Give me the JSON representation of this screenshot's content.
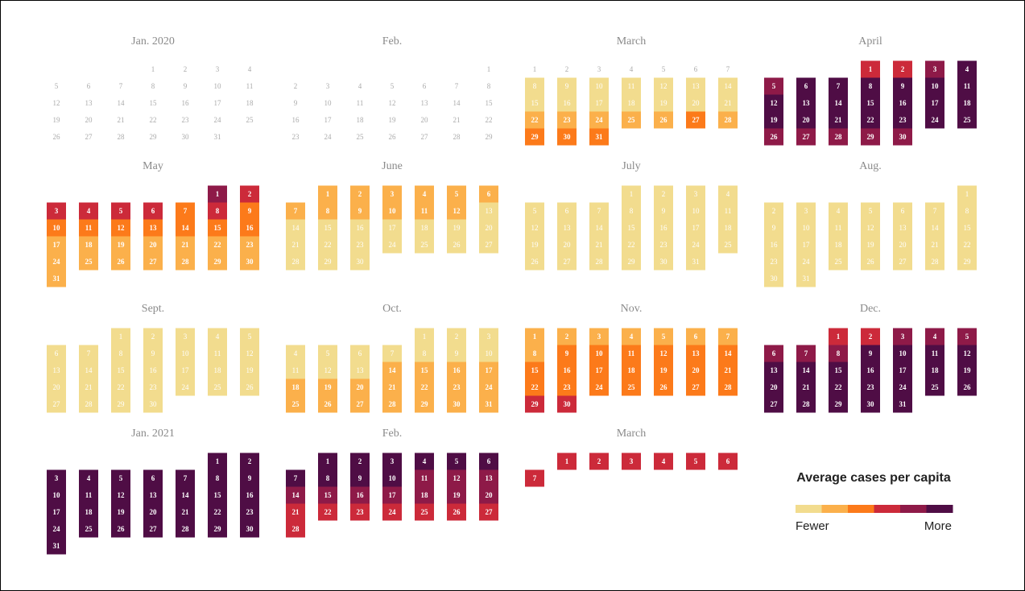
{
  "calendar": {
    "legend": {
      "title": "Average cases per capita",
      "low": "Fewer",
      "high": "More",
      "colors": [
        "#f2dc8e",
        "#fbb04b",
        "#fc7a1a",
        "#cc2a3a",
        "#8e1a48",
        "#4f0d45"
      ]
    },
    "months": [
      {
        "title": "Jan. 2020",
        "first_weekday": 3,
        "days": [
          1,
          2,
          3,
          4,
          5,
          6,
          7,
          8,
          9,
          10,
          11,
          12,
          13,
          14,
          15,
          16,
          17,
          18,
          19,
          20,
          21,
          22,
          23,
          24,
          25,
          26,
          27,
          28,
          29,
          30,
          31
        ],
        "levels": [
          0,
          0,
          0,
          0,
          0,
          0,
          0,
          0,
          0,
          0,
          0,
          0,
          0,
          0,
          0,
          0,
          0,
          0,
          0,
          0,
          0,
          0,
          0,
          0,
          0,
          0,
          0,
          0,
          0,
          0,
          0
        ]
      },
      {
        "title": "Feb.",
        "first_weekday": 6,
        "days": [
          1,
          2,
          3,
          4,
          5,
          6,
          7,
          8,
          9,
          10,
          11,
          12,
          13,
          14,
          15,
          16,
          17,
          18,
          19,
          20,
          21,
          22,
          23,
          24,
          25,
          26,
          27,
          28,
          29
        ],
        "levels": [
          0,
          0,
          0,
          0,
          0,
          0,
          0,
          0,
          0,
          0,
          0,
          0,
          0,
          0,
          0,
          0,
          0,
          0,
          0,
          0,
          0,
          0,
          0,
          0,
          0,
          0,
          0,
          0,
          0
        ]
      },
      {
        "title": "March",
        "first_weekday": 0,
        "days": [
          1,
          2,
          3,
          4,
          5,
          6,
          7,
          8,
          9,
          10,
          11,
          12,
          13,
          14,
          15,
          16,
          17,
          18,
          19,
          20,
          21,
          22,
          23,
          24,
          25,
          26,
          27,
          28,
          29,
          30,
          31
        ],
        "levels": [
          0,
          0,
          0,
          0,
          0,
          0,
          0,
          1,
          1,
          1,
          1,
          1,
          1,
          1,
          1,
          1,
          1,
          1,
          1,
          1,
          1,
          2,
          2,
          2,
          2,
          2,
          3,
          2,
          3,
          3,
          3
        ]
      },
      {
        "title": "April",
        "first_weekday": 3,
        "days": [
          1,
          2,
          3,
          4,
          5,
          6,
          7,
          8,
          9,
          10,
          11,
          12,
          13,
          14,
          15,
          16,
          17,
          18,
          19,
          20,
          21,
          22,
          23,
          24,
          25,
          26,
          27,
          28,
          29,
          30
        ],
        "levels": [
          4,
          4,
          5,
          6,
          5,
          6,
          6,
          6,
          6,
          6,
          6,
          6,
          6,
          6,
          6,
          6,
          6,
          6,
          6,
          6,
          6,
          6,
          6,
          6,
          6,
          5,
          5,
          5,
          5,
          5
        ]
      },
      {
        "title": "May",
        "first_weekday": 5,
        "days": [
          1,
          2,
          3,
          4,
          5,
          6,
          7,
          8,
          9,
          10,
          11,
          12,
          13,
          14,
          15,
          16,
          17,
          18,
          19,
          20,
          21,
          22,
          23,
          24,
          25,
          26,
          27,
          28,
          29,
          30,
          31
        ],
        "levels": [
          5,
          4,
          4,
          4,
          4,
          4,
          3,
          4,
          3,
          3,
          3,
          3,
          3,
          3,
          3,
          3,
          2,
          2,
          2,
          2,
          2,
          2,
          2,
          2,
          2,
          2,
          2,
          2,
          2,
          2,
          2
        ]
      },
      {
        "title": "June",
        "first_weekday": 1,
        "days": [
          1,
          2,
          3,
          4,
          5,
          6,
          7,
          8,
          9,
          10,
          11,
          12,
          13,
          14,
          15,
          16,
          17,
          18,
          19,
          20,
          21,
          22,
          23,
          24,
          25,
          26,
          27,
          28,
          29,
          30
        ],
        "levels": [
          2,
          2,
          2,
          2,
          2,
          2,
          2,
          2,
          2,
          2,
          2,
          2,
          1,
          1,
          1,
          1,
          1,
          1,
          1,
          1,
          1,
          1,
          1,
          1,
          1,
          1,
          1,
          1,
          1,
          1
        ]
      },
      {
        "title": "July",
        "first_weekday": 3,
        "days": [
          1,
          2,
          3,
          4,
          5,
          6,
          7,
          8,
          9,
          10,
          11,
          12,
          13,
          14,
          15,
          16,
          17,
          18,
          19,
          20,
          21,
          22,
          23,
          24,
          25,
          26,
          27,
          28,
          29,
          30,
          31
        ],
        "levels": [
          1,
          1,
          1,
          1,
          1,
          1,
          1,
          1,
          1,
          1,
          1,
          1,
          1,
          1,
          1,
          1,
          1,
          1,
          1,
          1,
          1,
          1,
          1,
          1,
          1,
          1,
          1,
          1,
          1,
          1,
          1
        ]
      },
      {
        "title": "Aug.",
        "first_weekday": 6,
        "days": [
          1,
          2,
          3,
          4,
          5,
          6,
          7,
          8,
          9,
          10,
          11,
          12,
          13,
          14,
          15,
          16,
          17,
          18,
          19,
          20,
          21,
          22,
          23,
          24,
          25,
          26,
          27,
          28,
          29,
          30,
          31
        ],
        "levels": [
          1,
          1,
          1,
          1,
          1,
          1,
          1,
          1,
          1,
          1,
          1,
          1,
          1,
          1,
          1,
          1,
          1,
          1,
          1,
          1,
          1,
          1,
          1,
          1,
          1,
          1,
          1,
          1,
          1,
          1,
          1
        ]
      },
      {
        "title": "Sept.",
        "first_weekday": 2,
        "days": [
          1,
          2,
          3,
          4,
          5,
          6,
          7,
          8,
          9,
          10,
          11,
          12,
          13,
          14,
          15,
          16,
          17,
          18,
          19,
          20,
          21,
          22,
          23,
          24,
          25,
          26,
          27,
          28,
          29,
          30
        ],
        "levels": [
          1,
          1,
          1,
          1,
          1,
          1,
          1,
          1,
          1,
          1,
          1,
          1,
          1,
          1,
          1,
          1,
          1,
          1,
          1,
          1,
          1,
          1,
          1,
          1,
          1,
          1,
          1,
          1,
          1,
          1
        ]
      },
      {
        "title": "Oct.",
        "first_weekday": 4,
        "days": [
          1,
          2,
          3,
          4,
          5,
          6,
          7,
          8,
          9,
          10,
          11,
          12,
          13,
          14,
          15,
          16,
          17,
          18,
          19,
          20,
          21,
          22,
          23,
          24,
          25,
          26,
          27,
          28,
          29,
          30,
          31
        ],
        "levels": [
          1,
          1,
          1,
          1,
          1,
          1,
          1,
          1,
          1,
          1,
          1,
          1,
          1,
          2,
          2,
          2,
          2,
          2,
          2,
          2,
          2,
          2,
          2,
          2,
          2,
          2,
          2,
          2,
          2,
          2,
          2
        ]
      },
      {
        "title": "Nov.",
        "first_weekday": 0,
        "days": [
          1,
          2,
          3,
          4,
          5,
          6,
          7,
          8,
          9,
          10,
          11,
          12,
          13,
          14,
          15,
          16,
          17,
          18,
          19,
          20,
          21,
          22,
          23,
          24,
          25,
          26,
          27,
          28,
          29,
          30
        ],
        "levels": [
          2,
          2,
          2,
          2,
          2,
          2,
          2,
          2,
          3,
          3,
          3,
          3,
          3,
          3,
          3,
          3,
          3,
          3,
          3,
          3,
          3,
          3,
          3,
          3,
          3,
          3,
          3,
          3,
          4,
          4
        ]
      },
      {
        "title": "Dec.",
        "first_weekday": 2,
        "days": [
          1,
          2,
          3,
          4,
          5,
          6,
          7,
          8,
          9,
          10,
          11,
          12,
          13,
          14,
          15,
          16,
          17,
          18,
          19,
          20,
          21,
          22,
          23,
          24,
          25,
          26,
          27,
          28,
          29,
          30,
          31
        ],
        "levels": [
          4,
          4,
          5,
          5,
          5,
          5,
          5,
          5,
          6,
          6,
          6,
          6,
          6,
          6,
          6,
          6,
          6,
          6,
          6,
          6,
          6,
          6,
          6,
          6,
          6,
          6,
          6,
          6,
          6,
          6,
          6
        ]
      },
      {
        "title": "Jan. 2021",
        "first_weekday": 5,
        "days": [
          1,
          2,
          3,
          4,
          5,
          6,
          7,
          8,
          9,
          10,
          11,
          12,
          13,
          14,
          15,
          16,
          17,
          18,
          19,
          20,
          21,
          22,
          23,
          24,
          25,
          26,
          27,
          28,
          29,
          30,
          31
        ],
        "levels": [
          6,
          6,
          6,
          6,
          6,
          6,
          6,
          6,
          6,
          6,
          6,
          6,
          6,
          6,
          6,
          6,
          6,
          6,
          6,
          6,
          6,
          6,
          6,
          6,
          6,
          6,
          6,
          6,
          6,
          6,
          6
        ]
      },
      {
        "title": "Feb.",
        "first_weekday": 1,
        "days": [
          1,
          2,
          3,
          4,
          5,
          6,
          7,
          8,
          9,
          10,
          11,
          12,
          13,
          14,
          15,
          16,
          17,
          18,
          19,
          20,
          21,
          22,
          23,
          24,
          25,
          26,
          27,
          28
        ],
        "levels": [
          6,
          6,
          6,
          6,
          6,
          6,
          6,
          6,
          6,
          6,
          5,
          5,
          5,
          5,
          5,
          5,
          5,
          5,
          5,
          5,
          4,
          4,
          4,
          4,
          4,
          4,
          4,
          4
        ]
      },
      {
        "title": "March",
        "first_weekday": 1,
        "days": [
          1,
          2,
          3,
          4,
          5,
          6,
          7
        ],
        "levels": [
          4,
          4,
          4,
          4,
          4,
          4,
          4
        ]
      }
    ]
  }
}
